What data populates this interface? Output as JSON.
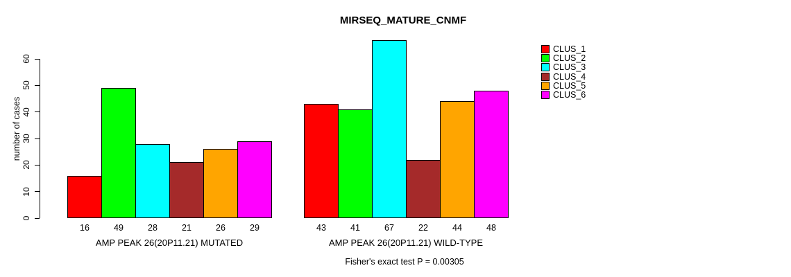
{
  "chart_data": {
    "type": "bar",
    "title": "MIRSEQ_MATURE_CNMF",
    "ylabel": "number of cases",
    "xlabel": "",
    "footer": "Fisher's exact test P = 0.00305",
    "ylim": [
      0,
      60
    ],
    "ytick_step": 10,
    "yticks": [
      0,
      10,
      20,
      30,
      40,
      50,
      60
    ],
    "grid": false,
    "legend_position": "right",
    "bar_border_color": "#000000",
    "clusters": [
      {
        "name": "CLUS_1",
        "color": "#FF0000"
      },
      {
        "name": "CLUS_2",
        "color": "#00FF00"
      },
      {
        "name": "CLUS_3",
        "color": "#00FFFF"
      },
      {
        "name": "CLUS_4",
        "color": "#A52A2A"
      },
      {
        "name": "CLUS_5",
        "color": "#FFA500"
      },
      {
        "name": "CLUS_6",
        "color": "#FF00FF"
      }
    ],
    "groups": [
      {
        "label": "AMP PEAK 26(20P11.21) MUTATED",
        "values": [
          16,
          49,
          28,
          21,
          26,
          29
        ]
      },
      {
        "label": "AMP PEAK 26(20P11.21) WILD-TYPE",
        "values": [
          43,
          41,
          67,
          22,
          44,
          48
        ]
      }
    ]
  }
}
